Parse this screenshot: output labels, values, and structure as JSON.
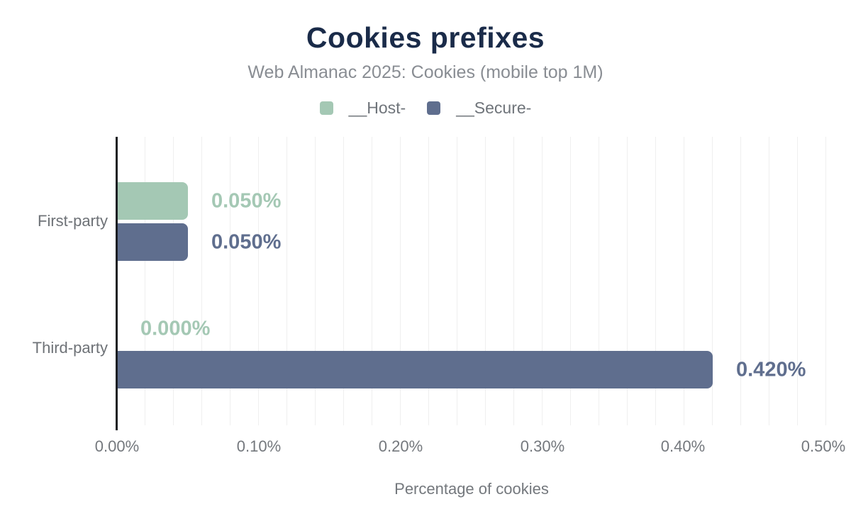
{
  "header": {
    "title": "Cookies prefixes",
    "subtitle": "Web Almanac 2025: Cookies (mobile top 1M)"
  },
  "chart_data": {
    "type": "bar",
    "orientation": "horizontal",
    "title": "Cookies prefixes",
    "subtitle": "Web Almanac 2025: Cookies (mobile top 1M)",
    "categories": [
      "First-party",
      "Third-party"
    ],
    "series": [
      {
        "name": "__Host-",
        "color": "#a4c8b4",
        "values": [
          0.05,
          0.0
        ],
        "labels": [
          "0.050%",
          "0.000%"
        ]
      },
      {
        "name": "__Secure-",
        "color": "#5f6e8e",
        "values": [
          0.05,
          0.42
        ],
        "labels": [
          "0.050%",
          "0.420%"
        ]
      }
    ],
    "xlabel": "Percentage of cookies",
    "ylabel": "",
    "xlim": [
      0,
      0.5
    ],
    "x_tick_labels": [
      "0.00%",
      "0.10%",
      "0.20%",
      "0.30%",
      "0.40%",
      "0.50%"
    ],
    "grid": "vertical, minor lines every 0.02%",
    "legend_position": "top"
  },
  "colors": {
    "title_navy": "#1a2b49",
    "text_gray": "#74787d",
    "axis_line": "#1b1e23",
    "gridline": "#efefef",
    "host_green": "#a4c8b4",
    "secure_slate": "#5f6e8e"
  }
}
